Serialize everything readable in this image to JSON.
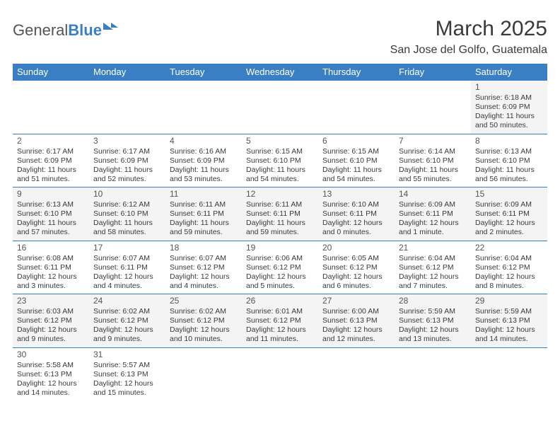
{
  "logo": {
    "part1": "General",
    "part2": "Blue"
  },
  "title": "March 2025",
  "location": "San Jose del Golfo, Guatemala",
  "dayHeaders": [
    "Sunday",
    "Monday",
    "Tuesday",
    "Wednesday",
    "Thursday",
    "Friday",
    "Saturday"
  ],
  "colors": {
    "header_bg": "#3a7fc4",
    "header_text": "#ffffff",
    "cell_border": "#3a7fc4",
    "alt_row_bg": "#f4f4f4",
    "text": "#3a3a3a"
  },
  "fonts": {
    "month_title_size": 30,
    "location_size": 16,
    "header_size": 13,
    "cell_size": 10.5,
    "daynum_size": 12
  },
  "weeks": [
    [
      null,
      null,
      null,
      null,
      null,
      null,
      {
        "d": "1",
        "sr": "Sunrise: 6:18 AM",
        "ss": "Sunset: 6:09 PM",
        "dl": "Daylight: 11 hours and 50 minutes."
      }
    ],
    [
      {
        "d": "2",
        "sr": "Sunrise: 6:17 AM",
        "ss": "Sunset: 6:09 PM",
        "dl": "Daylight: 11 hours and 51 minutes."
      },
      {
        "d": "3",
        "sr": "Sunrise: 6:17 AM",
        "ss": "Sunset: 6:09 PM",
        "dl": "Daylight: 11 hours and 52 minutes."
      },
      {
        "d": "4",
        "sr": "Sunrise: 6:16 AM",
        "ss": "Sunset: 6:09 PM",
        "dl": "Daylight: 11 hours and 53 minutes."
      },
      {
        "d": "5",
        "sr": "Sunrise: 6:15 AM",
        "ss": "Sunset: 6:10 PM",
        "dl": "Daylight: 11 hours and 54 minutes."
      },
      {
        "d": "6",
        "sr": "Sunrise: 6:15 AM",
        "ss": "Sunset: 6:10 PM",
        "dl": "Daylight: 11 hours and 54 minutes."
      },
      {
        "d": "7",
        "sr": "Sunrise: 6:14 AM",
        "ss": "Sunset: 6:10 PM",
        "dl": "Daylight: 11 hours and 55 minutes."
      },
      {
        "d": "8",
        "sr": "Sunrise: 6:13 AM",
        "ss": "Sunset: 6:10 PM",
        "dl": "Daylight: 11 hours and 56 minutes."
      }
    ],
    [
      {
        "d": "9",
        "sr": "Sunrise: 6:13 AM",
        "ss": "Sunset: 6:10 PM",
        "dl": "Daylight: 11 hours and 57 minutes."
      },
      {
        "d": "10",
        "sr": "Sunrise: 6:12 AM",
        "ss": "Sunset: 6:10 PM",
        "dl": "Daylight: 11 hours and 58 minutes."
      },
      {
        "d": "11",
        "sr": "Sunrise: 6:11 AM",
        "ss": "Sunset: 6:11 PM",
        "dl": "Daylight: 11 hours and 59 minutes."
      },
      {
        "d": "12",
        "sr": "Sunrise: 6:11 AM",
        "ss": "Sunset: 6:11 PM",
        "dl": "Daylight: 11 hours and 59 minutes."
      },
      {
        "d": "13",
        "sr": "Sunrise: 6:10 AM",
        "ss": "Sunset: 6:11 PM",
        "dl": "Daylight: 12 hours and 0 minutes."
      },
      {
        "d": "14",
        "sr": "Sunrise: 6:09 AM",
        "ss": "Sunset: 6:11 PM",
        "dl": "Daylight: 12 hours and 1 minute."
      },
      {
        "d": "15",
        "sr": "Sunrise: 6:09 AM",
        "ss": "Sunset: 6:11 PM",
        "dl": "Daylight: 12 hours and 2 minutes."
      }
    ],
    [
      {
        "d": "16",
        "sr": "Sunrise: 6:08 AM",
        "ss": "Sunset: 6:11 PM",
        "dl": "Daylight: 12 hours and 3 minutes."
      },
      {
        "d": "17",
        "sr": "Sunrise: 6:07 AM",
        "ss": "Sunset: 6:11 PM",
        "dl": "Daylight: 12 hours and 4 minutes."
      },
      {
        "d": "18",
        "sr": "Sunrise: 6:07 AM",
        "ss": "Sunset: 6:12 PM",
        "dl": "Daylight: 12 hours and 4 minutes."
      },
      {
        "d": "19",
        "sr": "Sunrise: 6:06 AM",
        "ss": "Sunset: 6:12 PM",
        "dl": "Daylight: 12 hours and 5 minutes."
      },
      {
        "d": "20",
        "sr": "Sunrise: 6:05 AM",
        "ss": "Sunset: 6:12 PM",
        "dl": "Daylight: 12 hours and 6 minutes."
      },
      {
        "d": "21",
        "sr": "Sunrise: 6:04 AM",
        "ss": "Sunset: 6:12 PM",
        "dl": "Daylight: 12 hours and 7 minutes."
      },
      {
        "d": "22",
        "sr": "Sunrise: 6:04 AM",
        "ss": "Sunset: 6:12 PM",
        "dl": "Daylight: 12 hours and 8 minutes."
      }
    ],
    [
      {
        "d": "23",
        "sr": "Sunrise: 6:03 AM",
        "ss": "Sunset: 6:12 PM",
        "dl": "Daylight: 12 hours and 9 minutes."
      },
      {
        "d": "24",
        "sr": "Sunrise: 6:02 AM",
        "ss": "Sunset: 6:12 PM",
        "dl": "Daylight: 12 hours and 9 minutes."
      },
      {
        "d": "25",
        "sr": "Sunrise: 6:02 AM",
        "ss": "Sunset: 6:12 PM",
        "dl": "Daylight: 12 hours and 10 minutes."
      },
      {
        "d": "26",
        "sr": "Sunrise: 6:01 AM",
        "ss": "Sunset: 6:12 PM",
        "dl": "Daylight: 12 hours and 11 minutes."
      },
      {
        "d": "27",
        "sr": "Sunrise: 6:00 AM",
        "ss": "Sunset: 6:13 PM",
        "dl": "Daylight: 12 hours and 12 minutes."
      },
      {
        "d": "28",
        "sr": "Sunrise: 5:59 AM",
        "ss": "Sunset: 6:13 PM",
        "dl": "Daylight: 12 hours and 13 minutes."
      },
      {
        "d": "29",
        "sr": "Sunrise: 5:59 AM",
        "ss": "Sunset: 6:13 PM",
        "dl": "Daylight: 12 hours and 14 minutes."
      }
    ],
    [
      {
        "d": "30",
        "sr": "Sunrise: 5:58 AM",
        "ss": "Sunset: 6:13 PM",
        "dl": "Daylight: 12 hours and 14 minutes."
      },
      {
        "d": "31",
        "sr": "Sunrise: 5:57 AM",
        "ss": "Sunset: 6:13 PM",
        "dl": "Daylight: 12 hours and 15 minutes."
      },
      null,
      null,
      null,
      null,
      null
    ]
  ]
}
